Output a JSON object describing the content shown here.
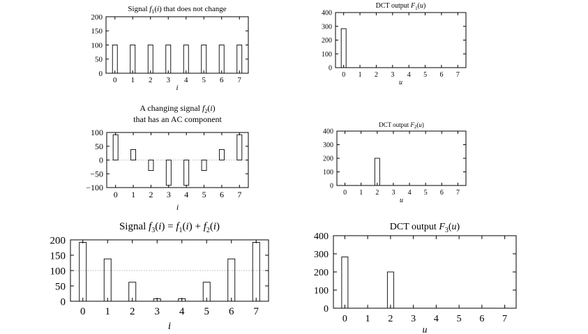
{
  "chart_data": [
    {
      "id": "f1",
      "type": "bar",
      "title_parts": [
        "Signal ",
        "f",
        "1",
        "(",
        "i",
        ") that does not change"
      ],
      "title": "Signal f1(i) that does not change",
      "xlabel": "i",
      "categories": [
        "0",
        "1",
        "2",
        "3",
        "4",
        "5",
        "6",
        "7"
      ],
      "values": [
        100,
        100,
        100,
        100,
        100,
        100,
        100,
        100
      ],
      "ylim": [
        0,
        200
      ],
      "yticks": [
        0,
        50,
        100,
        150,
        200
      ],
      "grid": false
    },
    {
      "id": "F1",
      "type": "bar",
      "title_parts": [
        "DCT output ",
        "F",
        "1",
        "(",
        "u",
        ")"
      ],
      "title": "DCT output F1(u)",
      "xlabel": "u",
      "categories": [
        "0",
        "1",
        "2",
        "3",
        "4",
        "5",
        "6",
        "7"
      ],
      "values": [
        283,
        0,
        0,
        0,
        0,
        0,
        0,
        0
      ],
      "ylim": [
        0,
        400
      ],
      "yticks": [
        0,
        100,
        200,
        300,
        400
      ],
      "grid": false
    },
    {
      "id": "f2",
      "type": "bar",
      "title_line1_parts": [
        "A changing signal ",
        "f",
        "2",
        "(",
        "i",
        ")"
      ],
      "title_line2": "that has an AC component",
      "title": "A changing signal f2(i) that has an AC component",
      "xlabel": "i",
      "categories": [
        "0",
        "1",
        "2",
        "3",
        "4",
        "5",
        "6",
        "7"
      ],
      "values": [
        92,
        38,
        -38,
        -92,
        -92,
        -38,
        38,
        92
      ],
      "ylim": [
        -100,
        100
      ],
      "yticks": [
        -100,
        -50,
        0,
        50,
        100
      ],
      "grid": false,
      "reference_line": 0
    },
    {
      "id": "F2",
      "type": "bar",
      "title_parts": [
        "DCT output ",
        "F",
        "2",
        "(",
        "u",
        ")"
      ],
      "title": "DCT output F2(u)",
      "xlabel": "u",
      "categories": [
        "0",
        "1",
        "2",
        "3",
        "4",
        "5",
        "6",
        "7"
      ],
      "values": [
        0,
        0,
        200,
        0,
        0,
        0,
        0,
        0
      ],
      "ylim": [
        0,
        400
      ],
      "yticks": [
        0,
        100,
        200,
        300,
        400
      ],
      "grid": false
    },
    {
      "id": "f3",
      "type": "bar",
      "title_parts": [
        "Signal ",
        "f",
        "3",
        "(",
        "i",
        ") = ",
        "f",
        "1",
        "(",
        "i",
        ") + ",
        "f",
        "2",
        "(",
        "i",
        ")"
      ],
      "title": "Signal f3(i) = f1(i) + f2(i)",
      "xlabel": "i",
      "categories": [
        "0",
        "1",
        "2",
        "3",
        "4",
        "5",
        "6",
        "7"
      ],
      "values": [
        192,
        138,
        62,
        8,
        8,
        62,
        138,
        192
      ],
      "ylim": [
        0,
        200
      ],
      "yticks": [
        0,
        50,
        100,
        150,
        200
      ],
      "grid": false,
      "reference_line": 100
    },
    {
      "id": "F3",
      "type": "bar",
      "title_parts": [
        "DCT output ",
        "F",
        "3",
        "(",
        "u",
        ")"
      ],
      "title": "DCT output F3(u)",
      "xlabel": "u",
      "categories": [
        "0",
        "1",
        "2",
        "3",
        "4",
        "5",
        "6",
        "7"
      ],
      "values": [
        283,
        0,
        200,
        0,
        0,
        0,
        0,
        0
      ],
      "ylim": [
        0,
        400
      ],
      "yticks": [
        0,
        100,
        200,
        300,
        400
      ],
      "grid": false
    }
  ]
}
